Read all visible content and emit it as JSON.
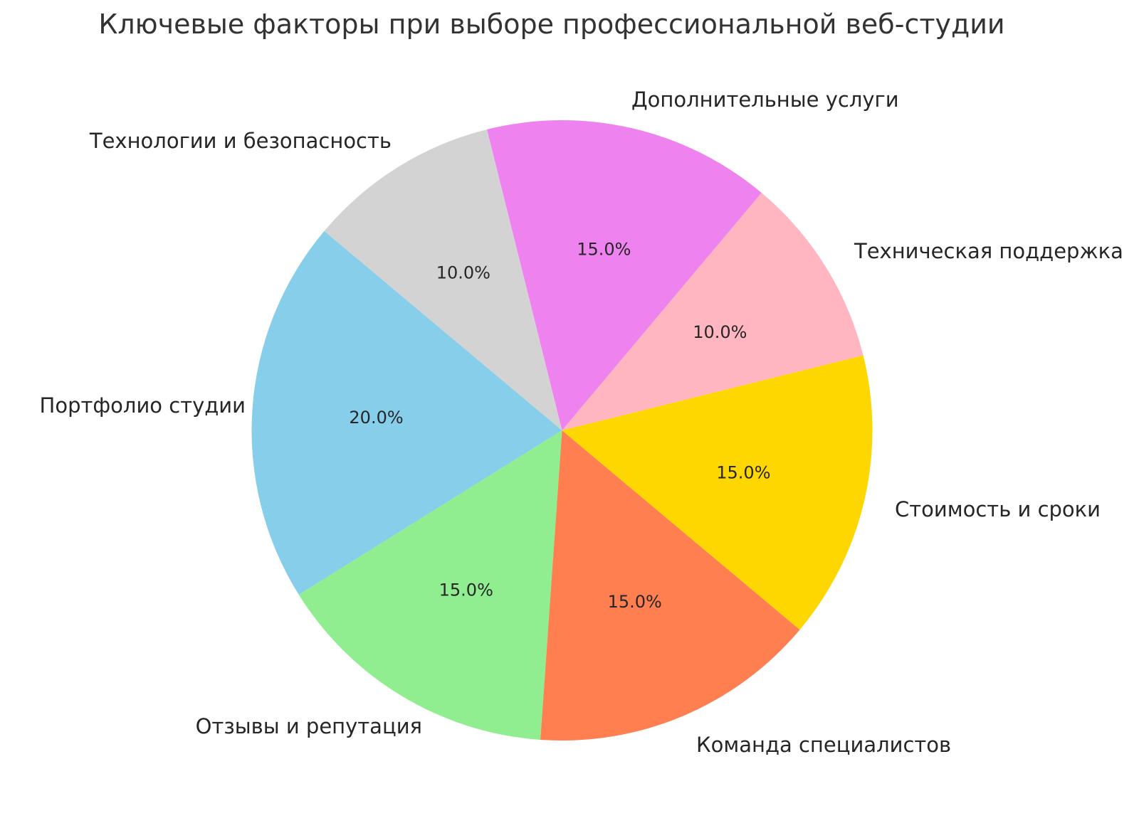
{
  "title": "Ключевые факторы при выборе профессиональной веб-студии",
  "chart_data": {
    "type": "pie",
    "title": "Ключевые факторы при выборе профессиональной веб-студии",
    "start_angle_deg": 140,
    "direction": "counterclockwise",
    "legend": "none",
    "slices": [
      {
        "key": "portfolio",
        "label": "Портфолио студии",
        "value": 20.0,
        "pct_label": "20.0%",
        "color": "#87CEEB"
      },
      {
        "key": "reviews",
        "label": "Отзывы и репутация",
        "value": 15.0,
        "pct_label": "15.0%",
        "color": "#90EE90"
      },
      {
        "key": "team",
        "label": "Команда специалистов",
        "value": 15.0,
        "pct_label": "15.0%",
        "color": "#FF7F50"
      },
      {
        "key": "cost",
        "label": "Стоимость и сроки",
        "value": 15.0,
        "pct_label": "15.0%",
        "color": "#FFD700"
      },
      {
        "key": "support",
        "label": "Техническая поддержка",
        "value": 10.0,
        "pct_label": "10.0%",
        "color": "#FFB6C1"
      },
      {
        "key": "services",
        "label": "Дополнительные услуги",
        "value": 15.0,
        "pct_label": "15.0%",
        "color": "#EE82EE"
      },
      {
        "key": "tech",
        "label": "Технологии и безопасность",
        "value": 10.0,
        "pct_label": "10.0%",
        "color": "#D3D3D3"
      }
    ]
  }
}
